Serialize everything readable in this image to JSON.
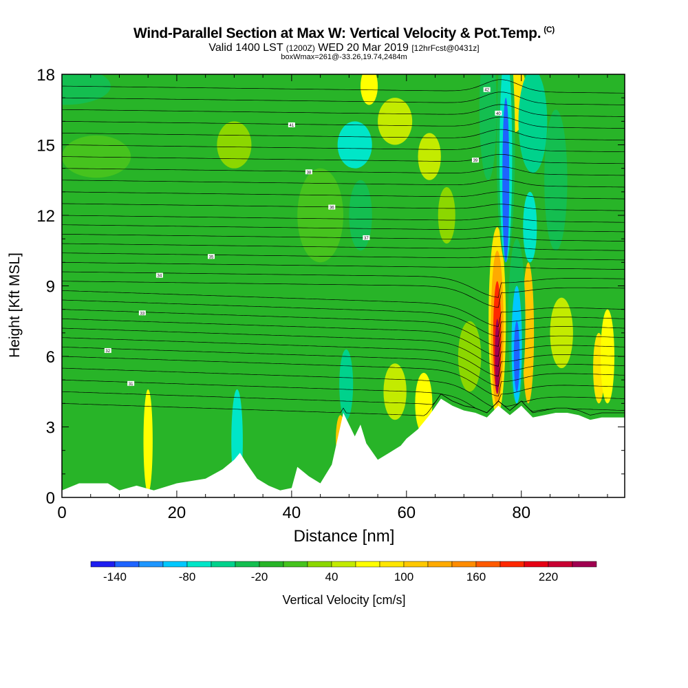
{
  "title": "Wind-Parallel Section at Max W: Vertical Velocity & Pot.Temp.",
  "title_mark": "(C)",
  "subtitle_main": "Valid 1400 LST",
  "subtitle_utc": "(1200Z)",
  "subtitle_date": "WED 20 Mar 2019",
  "subtitle_fcst": "[12hrFcst@0431z]",
  "subtitle2": "boxWmax=261@-33.26,19.74,2484m",
  "chart_data": {
    "type": "heatmap",
    "title": "Wind-Parallel Section at Max W: Vertical Velocity & Pot.Temp.",
    "xlabel": "Distance [nm]",
    "ylabel": "Height [Kft MSL]",
    "xlim": [
      0,
      98
    ],
    "ylim": [
      0,
      18
    ],
    "x_ticks": [
      0,
      20,
      40,
      60,
      80
    ],
    "y_ticks": [
      0,
      3,
      6,
      9,
      12,
      15,
      18
    ],
    "colorbar": {
      "label": "Vertical Velocity [cm/s]",
      "tick_labels": [
        -140,
        -80,
        -20,
        40,
        100,
        160,
        220
      ],
      "levels": [
        -160,
        -140,
        -120,
        -100,
        -80,
        -60,
        -40,
        -20,
        0,
        20,
        40,
        60,
        80,
        100,
        120,
        140,
        160,
        180,
        200,
        220,
        240,
        260
      ],
      "colors": [
        "#1e1ef0",
        "#1e64ff",
        "#1e96ff",
        "#00c8ff",
        "#00e6c8",
        "#00d28c",
        "#14be50",
        "#28b428",
        "#46c31e",
        "#8cd700",
        "#c3eb00",
        "#ffff00",
        "#ffe600",
        "#ffc800",
        "#ffaa00",
        "#ff8c00",
        "#ff5a00",
        "#ff2800",
        "#e60014",
        "#c80032",
        "#a00050"
      ]
    },
    "max_updraft": {
      "x_nm": 75.8,
      "height_kft": 6.0,
      "value_cms": 261
    },
    "max_downdraft": {
      "x_nm": 77.3,
      "height_kft": 11.5,
      "value_cms": -140
    },
    "terrain_kft": {
      "x": [
        0,
        3,
        8,
        10,
        13,
        16,
        20,
        25,
        28,
        30,
        31,
        32,
        34,
        36,
        38,
        40,
        41,
        43,
        45,
        47,
        48,
        49,
        51,
        52,
        53,
        55,
        57,
        59,
        60,
        62,
        64,
        66,
        68,
        70,
        72,
        74,
        76,
        78,
        80,
        82,
        84,
        86,
        88,
        90,
        92,
        94,
        98
      ],
      "height": [
        0.3,
        0.6,
        0.6,
        0.3,
        0.5,
        0.3,
        0.6,
        0.8,
        1.2,
        1.6,
        1.9,
        1.5,
        0.8,
        0.5,
        0.3,
        0.4,
        1.3,
        0.9,
        0.6,
        1.4,
        2.5,
        3.6,
        2.6,
        3.1,
        2.3,
        1.6,
        1.9,
        2.2,
        2.5,
        2.9,
        3.5,
        4.2,
        3.9,
        3.7,
        3.6,
        3.4,
        3.9,
        3.5,
        3.9,
        3.4,
        3.5,
        3.6,
        3.6,
        3.5,
        3.3,
        3.4,
        3.4
      ]
    },
    "potential_temperature": {
      "contour_heights_kft": [
        4.0,
        4.5,
        5.0,
        5.5,
        6.0,
        6.4,
        6.8,
        7.2,
        7.6,
        8.0,
        8.4,
        8.8,
        9.2,
        9.6,
        10.0,
        10.4,
        10.8,
        11.2,
        11.6,
        12.0,
        12.5,
        13.0,
        13.5,
        14.0,
        14.5,
        15.0,
        15.5,
        16.0,
        16.5,
        17.0,
        17.5
      ],
      "label_text": [
        "31",
        "32",
        "33",
        "34",
        "35",
        "36",
        "37",
        "38",
        "39",
        "40",
        "41",
        "42",
        "43",
        "44",
        "45",
        "46"
      ]
    }
  }
}
